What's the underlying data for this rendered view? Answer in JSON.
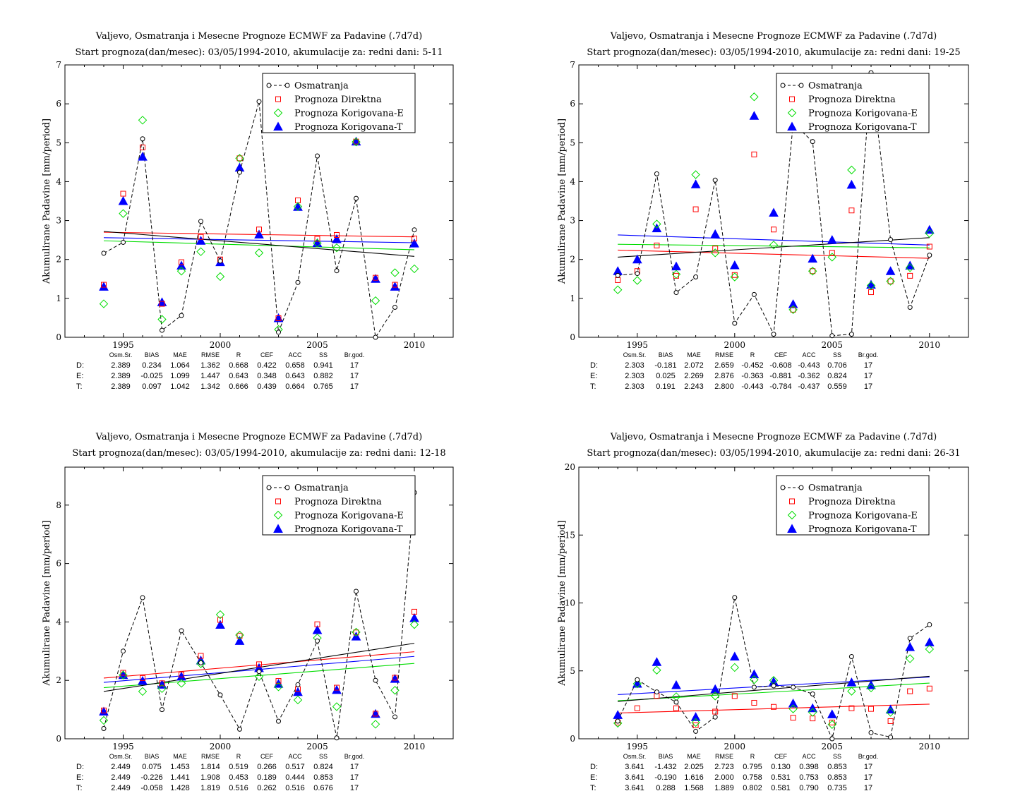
{
  "colors": {
    "obs": "#000000",
    "direct": "#ff0000",
    "corr_e": "#00dd00",
    "corr_t": "#0000ff"
  },
  "legend": [
    "Osmatranja",
    "Prognoza Direktna",
    "Prognoza Korigovana-E",
    "Prognoza Korigovana-T"
  ],
  "stats_header": [
    "Osm.Sr.",
    "BIAS",
    "MAE",
    "RMSE",
    "R",
    "CEF",
    "ACC",
    "SS",
    "Br.god."
  ],
  "chart_data": [
    {
      "type": "scatter",
      "title": "Valjevo, Osmatranja i Mesecne Prognoze ECMWF za Padavine (.7d7d)",
      "subtitle": "Start prognoza(dan/mesec): 03/05/1994-2010, akumulacije za: redni dani: 5-11",
      "ylabel": "Akumulirane Padavine [mm/period]",
      "xlim": [
        1992,
        2012
      ],
      "ylim": [
        0,
        7
      ],
      "xticks": [
        1995,
        2000,
        2005,
        2010
      ],
      "yticks": [
        0,
        1,
        2,
        3,
        4,
        5,
        6,
        7
      ],
      "x": [
        1994,
        1995,
        1996,
        1997,
        1998,
        1999,
        2000,
        2001,
        2002,
        2003,
        2004,
        2005,
        2006,
        2007,
        2008,
        2009,
        2010
      ],
      "series": [
        {
          "name": "Osmatranja",
          "values": [
            2.16,
            2.44,
            5.1,
            0.18,
            0.56,
            2.98,
            1.96,
            4.24,
            6.06,
            0.13,
            1.41,
            4.66,
            1.71,
            3.57,
            0.0,
            0.77,
            2.76
          ]
        },
        {
          "name": "Prognoza Direktna",
          "values": [
            1.35,
            3.69,
            4.88,
            0.86,
            1.93,
            2.58,
            2.0,
            4.6,
            2.77,
            0.49,
            3.52,
            2.53,
            2.63,
            5.03,
            1.53,
            1.35,
            2.54
          ]
        },
        {
          "name": "Prognoza Korigovana-E",
          "values": [
            0.86,
            3.18,
            5.58,
            0.46,
            1.7,
            2.2,
            1.56,
            4.6,
            2.17,
            0.2,
            3.36,
            2.42,
            2.3,
            5.02,
            0.94,
            1.66,
            1.76
          ]
        },
        {
          "name": "Prognoza Korigovana-T",
          "values": [
            1.3,
            3.5,
            4.64,
            0.9,
            1.84,
            2.48,
            1.93,
            4.36,
            2.64,
            0.49,
            3.35,
            2.42,
            2.52,
            5.03,
            1.5,
            1.3,
            2.41
          ]
        }
      ],
      "trends": [
        {
          "name": "Osmatranja",
          "y0": 2.72,
          "y1": 2.08
        },
        {
          "name": "Prognoza Direktna",
          "y0": 2.7,
          "y1": 2.58
        },
        {
          "name": "Prognoza Korigovana-E",
          "y0": 2.48,
          "y1": 2.25
        },
        {
          "name": "Prognoza Korigovana-T",
          "y0": 2.56,
          "y1": 2.43
        }
      ],
      "stats": [
        {
          "label": "D:",
          "values": [
            "2.389",
            "0.234",
            "1.064",
            "1.362",
            "0.668",
            "0.422",
            "0.658",
            "0.941",
            "17"
          ]
        },
        {
          "label": "E:",
          "values": [
            "2.389",
            "-0.025",
            "1.099",
            "1.447",
            "0.643",
            "0.348",
            "0.643",
            "0.882",
            "17"
          ]
        },
        {
          "label": "T:",
          "values": [
            "2.389",
            "0.097",
            "1.042",
            "1.342",
            "0.666",
            "0.439",
            "0.664",
            "0.765",
            "17"
          ]
        }
      ]
    },
    {
      "type": "scatter",
      "title": "Valjevo, Osmatranja i Mesecne Prognoze ECMWF za Padavine (.7d7d)",
      "subtitle": "Start prognoza(dan/mesec): 03/05/1994-2010, akumulacije za: redni dani: 19-25",
      "ylabel": "Akumulirane Padavine [mm/period]",
      "xlim": [
        1992,
        2012
      ],
      "ylim": [
        0,
        7
      ],
      "xticks": [
        1995,
        2000,
        2005,
        2010
      ],
      "yticks": [
        0,
        1,
        2,
        3,
        4,
        5,
        6,
        7
      ],
      "x": [
        1994,
        1995,
        1996,
        1997,
        1998,
        1999,
        2000,
        2001,
        2002,
        2003,
        2004,
        2005,
        2006,
        2007,
        2008,
        2009,
        2010
      ],
      "series": [
        {
          "name": "Osmatranja",
          "values": [
            1.59,
            1.64,
            4.2,
            1.15,
            1.55,
            4.04,
            0.36,
            1.1,
            0.08,
            5.5,
            5.03,
            0.04,
            0.08,
            6.8,
            2.51,
            0.77,
            2.11
          ]
        },
        {
          "name": "Prognoza Direktna",
          "values": [
            1.47,
            1.7,
            2.36,
            1.58,
            3.29,
            2.28,
            1.6,
            4.7,
            2.77,
            0.71,
            1.7,
            2.17,
            3.26,
            1.16,
            1.44,
            1.58,
            2.33
          ]
        },
        {
          "name": "Prognoza Korigovana-E",
          "values": [
            1.22,
            1.46,
            2.91,
            1.62,
            4.18,
            2.17,
            1.55,
            6.18,
            2.37,
            0.71,
            1.7,
            2.06,
            4.3,
            1.33,
            1.44,
            1.79,
            2.67
          ]
        },
        {
          "name": "Prognoza Korigovana-T",
          "values": [
            1.7,
            2.0,
            2.8,
            1.82,
            3.93,
            2.65,
            1.85,
            5.69,
            3.2,
            0.85,
            2.02,
            2.5,
            3.92,
            1.35,
            1.7,
            1.84,
            2.76
          ]
        }
      ],
      "trends": [
        {
          "name": "Osmatranja",
          "y0": 2.06,
          "y1": 2.56
        },
        {
          "name": "Prognoza Direktna",
          "y0": 2.24,
          "y1": 2.03
        },
        {
          "name": "Prognoza Korigovana-E",
          "y0": 2.39,
          "y1": 2.3
        },
        {
          "name": "Prognoza Korigovana-T",
          "y0": 2.63,
          "y1": 2.37
        }
      ],
      "stats": [
        {
          "label": "D:",
          "values": [
            "2.303",
            "-0.181",
            "2.072",
            "2.659",
            "-0.452",
            "-0.608",
            "-0.443",
            "0.706",
            "17"
          ]
        },
        {
          "label": "E:",
          "values": [
            "2.303",
            "0.025",
            "2.269",
            "2.876",
            "-0.363",
            "-0.881",
            "-0.362",
            "0.824",
            "17"
          ]
        },
        {
          "label": "T:",
          "values": [
            "2.303",
            "0.191",
            "2.243",
            "2.800",
            "-0.443",
            "-0.784",
            "-0.437",
            "0.559",
            "17"
          ]
        }
      ]
    },
    {
      "type": "scatter",
      "title": "Valjevo, Osmatranja i Mesecne Prognoze ECMWF za Padavine (.7d7d)",
      "subtitle": "Start prognoza(dan/mesec): 03/05/1994-2010, akumulacije za: redni dani: 12-18",
      "ylabel": "Akumulirane Padavine [mm/period]",
      "xlim": [
        1992,
        2012
      ],
      "ylim": [
        0,
        9.3
      ],
      "xticks": [
        1995,
        2000,
        2005,
        2010
      ],
      "yticks": [
        0,
        2,
        4,
        6,
        8
      ],
      "x": [
        1994,
        1995,
        1996,
        1997,
        1998,
        1999,
        2000,
        2001,
        2002,
        2003,
        2004,
        2005,
        2006,
        2007,
        2008,
        2009,
        2010
      ],
      "series": [
        {
          "name": "Osmatranja",
          "values": [
            0.35,
            3.0,
            4.83,
            1.0,
            3.7,
            2.6,
            1.5,
            0.33,
            2.3,
            0.6,
            1.85,
            3.35,
            0.03,
            5.05,
            2.0,
            0.75,
            8.43
          ]
        },
        {
          "name": "Prognoza Direktna",
          "values": [
            0.97,
            2.26,
            2.08,
            1.9,
            2.2,
            2.84,
            4.07,
            3.53,
            2.55,
            1.98,
            1.7,
            3.92,
            1.75,
            3.64,
            0.86,
            2.09,
            4.35
          ]
        },
        {
          "name": "Prognoza Korigovana-E",
          "values": [
            0.63,
            2.18,
            1.62,
            1.72,
            1.9,
            2.57,
            4.25,
            3.55,
            2.13,
            1.78,
            1.33,
            3.45,
            1.1,
            3.65,
            0.5,
            1.66,
            3.91
          ]
        },
        {
          "name": "Prognoza Korigovana-T",
          "values": [
            0.93,
            2.18,
            1.98,
            1.85,
            2.13,
            2.68,
            3.9,
            3.35,
            2.42,
            1.88,
            1.6,
            3.72,
            1.67,
            3.5,
            0.85,
            2.05,
            4.13
          ]
        }
      ],
      "trends": [
        {
          "name": "Osmatranja",
          "y0": 1.62,
          "y1": 3.27
        },
        {
          "name": "Prognoza Direktna",
          "y0": 2.08,
          "y1": 2.98
        },
        {
          "name": "Prognoza Korigovana-E",
          "y0": 1.75,
          "y1": 2.58
        },
        {
          "name": "Prognoza Korigovana-T",
          "y0": 1.93,
          "y1": 2.82
        }
      ],
      "stats": [
        {
          "label": "D:",
          "values": [
            "2.449",
            "0.075",
            "1.453",
            "1.814",
            "0.519",
            "0.266",
            "0.517",
            "0.824",
            "17"
          ]
        },
        {
          "label": "E:",
          "values": [
            "2.449",
            "-0.226",
            "1.441",
            "1.908",
            "0.453",
            "0.189",
            "0.444",
            "0.853",
            "17"
          ]
        },
        {
          "label": "T:",
          "values": [
            "2.449",
            "-0.058",
            "1.428",
            "1.819",
            "0.516",
            "0.262",
            "0.516",
            "0.676",
            "17"
          ]
        }
      ]
    },
    {
      "type": "scatter",
      "title": "Valjevo, Osmatranja i Mesecne Prognoze ECMWF za Padavine (.7d7d)",
      "subtitle": "Start prognoza(dan/mesec): 03/05/1994-2010, akumulacije za: redni dani: 26-31",
      "ylabel": "Akumulirane Padavine [mm/period]",
      "xlim": [
        1992,
        2012
      ],
      "ylim": [
        0,
        20
      ],
      "xticks": [
        1995,
        2000,
        2005,
        2010
      ],
      "yticks": [
        0,
        5,
        10,
        15,
        20
      ],
      "x": [
        1994,
        1995,
        1996,
        1997,
        1998,
        1999,
        2000,
        2001,
        2002,
        2003,
        2004,
        2005,
        2006,
        2007,
        2008,
        2009,
        2010
      ],
      "series": [
        {
          "name": "Osmatranja",
          "values": [
            1.3,
            4.35,
            3.45,
            2.7,
            0.55,
            1.6,
            10.4,
            3.8,
            3.9,
            3.8,
            3.3,
            0.0,
            6.05,
            0.45,
            0.12,
            7.4,
            8.4
          ]
        },
        {
          "name": "Prognoza Direktna",
          "values": [
            1.2,
            2.25,
            3.15,
            2.25,
            1.0,
            2.0,
            3.15,
            2.65,
            2.35,
            1.55,
            1.5,
            1.2,
            2.25,
            2.2,
            1.3,
            3.5,
            3.7
          ]
        },
        {
          "name": "Prognoza Korigovana-E",
          "values": [
            1.15,
            4.05,
            5.05,
            3.1,
            1.2,
            3.15,
            5.25,
            4.35,
            4.3,
            2.2,
            1.95,
            1.05,
            3.5,
            3.75,
            1.95,
            5.9,
            6.6
          ]
        },
        {
          "name": "Prognoza Korigovana-T",
          "values": [
            1.75,
            4.05,
            5.65,
            3.95,
            1.6,
            3.65,
            6.05,
            4.75,
            4.2,
            2.6,
            2.25,
            1.8,
            4.15,
            3.95,
            2.15,
            6.75,
            7.1
          ]
        }
      ],
      "trends": [
        {
          "name": "Osmatranja",
          "y0": 2.75,
          "y1": 4.6
        },
        {
          "name": "Prognoza Direktna",
          "y0": 1.9,
          "y1": 2.55
        },
        {
          "name": "Prognoza Korigovana-E",
          "y0": 2.8,
          "y1": 4.1
        },
        {
          "name": "Prognoza Korigovana-T",
          "y0": 3.25,
          "y1": 4.55
        }
      ],
      "stats": [
        {
          "label": "D:",
          "values": [
            "3.641",
            "-1.432",
            "2.025",
            "2.723",
            "0.795",
            "0.130",
            "0.398",
            "0.853",
            "17"
          ]
        },
        {
          "label": "E:",
          "values": [
            "3.641",
            "-0.190",
            "1.616",
            "2.000",
            "0.758",
            "0.531",
            "0.753",
            "0.853",
            "17"
          ]
        },
        {
          "label": "T:",
          "values": [
            "3.641",
            "0.288",
            "1.568",
            "1.889",
            "0.802",
            "0.581",
            "0.790",
            "0.735",
            "17"
          ]
        }
      ]
    }
  ]
}
